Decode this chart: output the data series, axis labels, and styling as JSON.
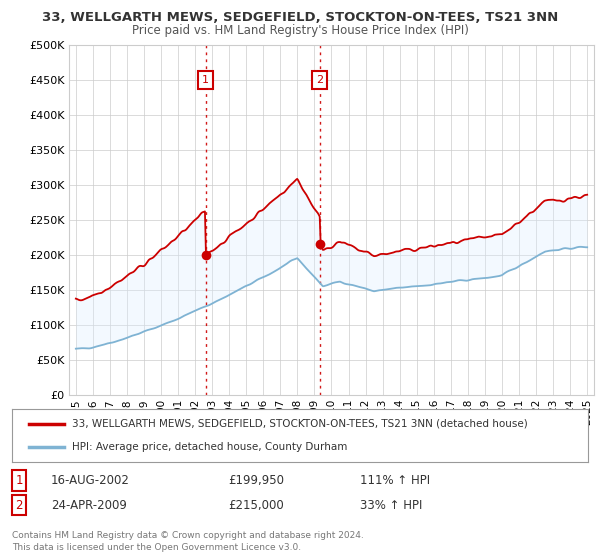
{
  "title": "33, WELLGARTH MEWS, SEDGEFIELD, STOCKTON-ON-TEES, TS21 3NN",
  "subtitle": "Price paid vs. HM Land Registry's House Price Index (HPI)",
  "ylabel_ticks": [
    "£0",
    "£50K",
    "£100K",
    "£150K",
    "£200K",
    "£250K",
    "£300K",
    "£350K",
    "£400K",
    "£450K",
    "£500K"
  ],
  "ytick_values": [
    0,
    50000,
    100000,
    150000,
    200000,
    250000,
    300000,
    350000,
    400000,
    450000,
    500000
  ],
  "ylim": [
    0,
    500000
  ],
  "xlim_start": 1994.6,
  "xlim_end": 2025.4,
  "xtick_years": [
    1995,
    1996,
    1997,
    1998,
    1999,
    2000,
    2001,
    2002,
    2003,
    2004,
    2005,
    2006,
    2007,
    2008,
    2009,
    2010,
    2011,
    2012,
    2013,
    2014,
    2015,
    2016,
    2017,
    2018,
    2019,
    2020,
    2021,
    2022,
    2023,
    2024,
    2025
  ],
  "sale1_x": 2002.62,
  "sale1_y": 199950,
  "sale1_label": "1",
  "sale1_date": "16-AUG-2002",
  "sale1_price": "£199,950",
  "sale1_hpi": "111% ↑ HPI",
  "sale2_x": 2009.31,
  "sale2_y": 215000,
  "sale2_label": "2",
  "sale2_date": "24-APR-2009",
  "sale2_price": "£215,000",
  "sale2_hpi": "33% ↑ HPI",
  "legend_line1": "33, WELLGARTH MEWS, SEDGEFIELD, STOCKTON-ON-TEES, TS21 3NN (detached house)",
  "legend_line2": "HPI: Average price, detached house, County Durham",
  "footer1": "Contains HM Land Registry data © Crown copyright and database right 2024.",
  "footer2": "This data is licensed under the Open Government Licence v3.0.",
  "house_color": "#cc0000",
  "hpi_color": "#7fb3d3",
  "shading_color": "#ddeeff",
  "vline_color": "#cc0000",
  "box_color": "#cc0000",
  "bg_color": "#ffffff",
  "grid_color": "#cccccc"
}
